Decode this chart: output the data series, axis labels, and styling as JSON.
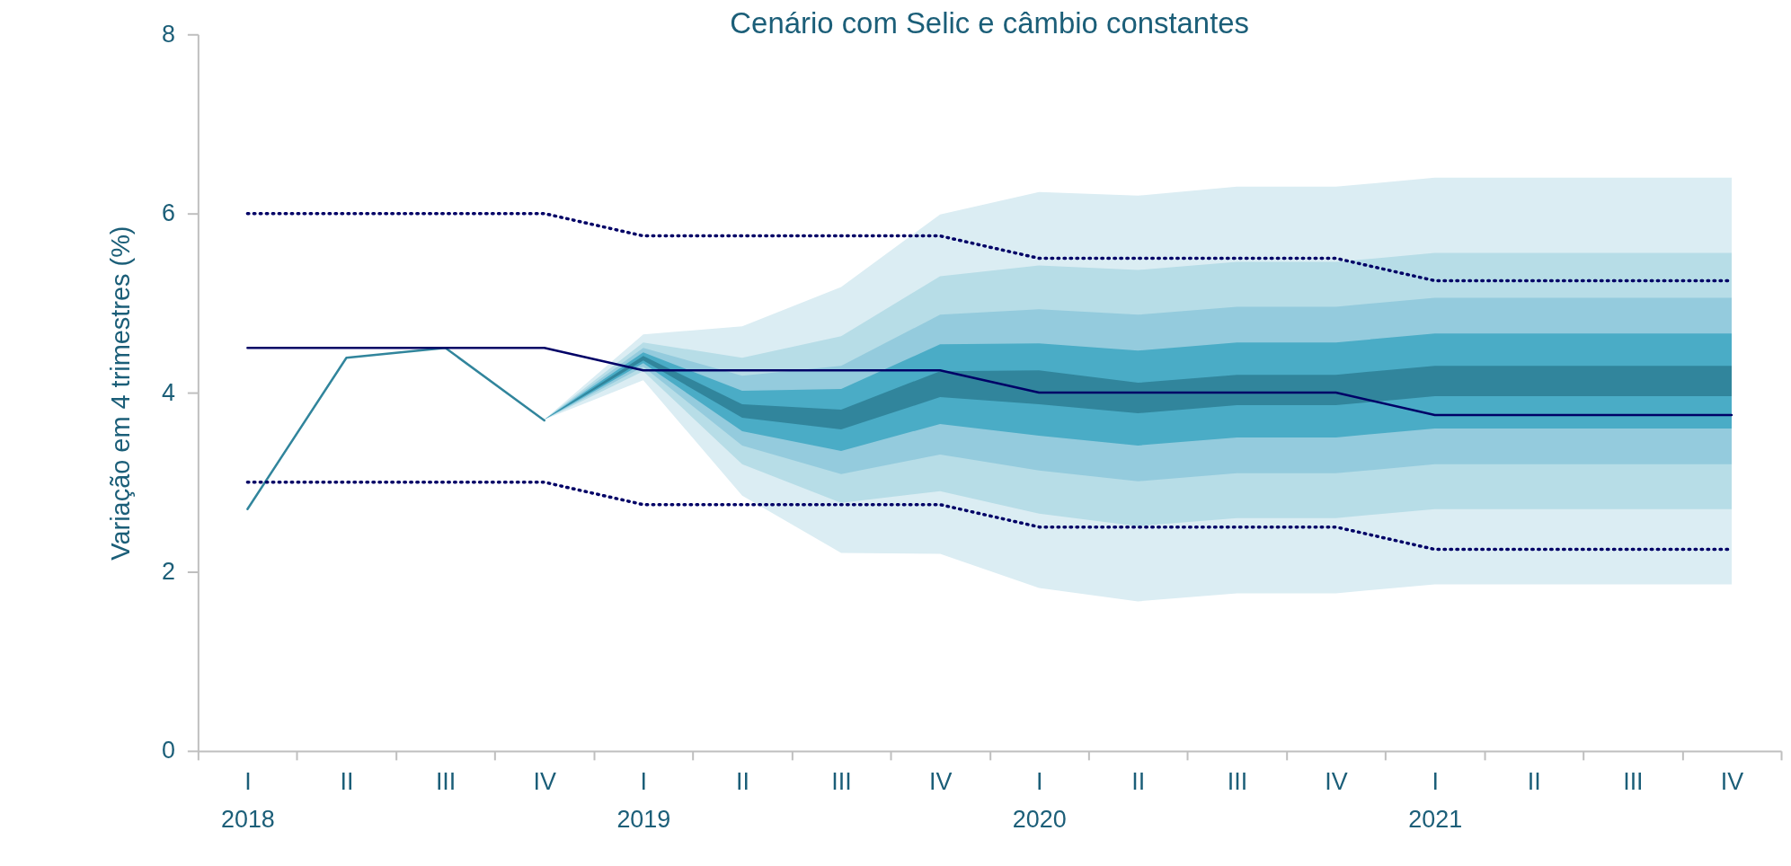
{
  "chart_data": {
    "type": "line",
    "title": "Cenário com Selic e câmbio constantes",
    "ylabel": "Variação em 4 trimestres (%)",
    "categories": [
      "I",
      "II",
      "III",
      "IV",
      "I",
      "II",
      "III",
      "IV",
      "I",
      "II",
      "III",
      "IV",
      "I",
      "II",
      "III",
      "IV"
    ],
    "annotations": [
      "2018",
      "2019",
      "2020",
      "2021"
    ],
    "ylim": [
      0,
      8
    ],
    "yticks": [
      0,
      2,
      4,
      6,
      8
    ],
    "grid": false,
    "series": [
      {
        "type": "area",
        "color": "#dbedf3",
        "values": [
          null,
          null,
          null,
          null,
          null,
          null,
          null,
          null,
          null,
          null,
          null,
          null,
          null,
          null,
          null,
          null
        ],
        "lower": [
          null,
          null,
          null,
          3.7,
          4.14,
          2.85,
          2.21,
          2.2,
          1.82,
          1.67,
          1.76,
          1.76,
          1.86,
          1.86,
          1.86,
          1.86
        ],
        "upper": [
          null,
          null,
          null,
          3.7,
          4.65,
          4.74,
          5.18,
          5.99,
          6.24,
          6.2,
          6.3,
          6.3,
          6.4,
          6.4,
          6.4,
          6.4
        ]
      },
      {
        "type": "area",
        "color": "#b7dde7",
        "values": [
          null,
          null,
          null,
          null,
          null,
          null,
          null,
          null,
          null,
          null,
          null,
          null,
          null,
          null,
          null,
          null
        ],
        "lower": [
          null,
          null,
          null,
          3.7,
          4.24,
          3.2,
          2.77,
          2.9,
          2.65,
          2.51,
          2.6,
          2.6,
          2.7,
          2.7,
          2.7,
          2.7
        ],
        "upper": [
          null,
          null,
          null,
          3.7,
          4.56,
          4.39,
          4.63,
          5.3,
          5.42,
          5.37,
          5.46,
          5.46,
          5.56,
          5.56,
          5.56,
          5.56
        ]
      },
      {
        "type": "area",
        "color": "#94cbdd",
        "values": [
          null,
          null,
          null,
          null,
          null,
          null,
          null,
          null,
          null,
          null,
          null,
          null,
          null,
          null,
          null,
          null
        ],
        "lower": [
          null,
          null,
          null,
          3.7,
          4.29,
          3.41,
          3.09,
          3.31,
          3.13,
          3.01,
          3.1,
          3.1,
          3.2,
          3.2,
          3.2,
          3.2
        ],
        "upper": [
          null,
          null,
          null,
          3.7,
          4.5,
          4.19,
          4.3,
          4.87,
          4.93,
          4.87,
          4.96,
          4.96,
          5.06,
          5.06,
          5.06,
          5.06
        ]
      },
      {
        "type": "area",
        "color": "#4aacc6",
        "values": [
          null,
          null,
          null,
          null,
          null,
          null,
          null,
          null,
          null,
          null,
          null,
          null,
          null,
          null,
          null,
          null
        ],
        "lower": [
          null,
          null,
          null,
          3.7,
          4.33,
          3.57,
          3.35,
          3.65,
          3.52,
          3.41,
          3.5,
          3.5,
          3.6,
          3.6,
          3.6,
          3.6
        ],
        "upper": [
          null,
          null,
          null,
          3.7,
          4.45,
          4.02,
          4.04,
          4.54,
          4.55,
          4.47,
          4.56,
          4.56,
          4.66,
          4.66,
          4.66,
          4.66
        ]
      },
      {
        "type": "area",
        "color": "#31859c",
        "values": [
          null,
          null,
          null,
          null,
          null,
          null,
          null,
          null,
          null,
          null,
          null,
          null,
          null,
          null,
          null,
          null
        ],
        "lower": [
          null,
          null,
          null,
          3.7,
          4.36,
          3.72,
          3.59,
          3.95,
          3.87,
          3.77,
          3.86,
          3.86,
          3.96,
          3.96,
          3.96,
          3.96
        ],
        "upper": [
          null,
          null,
          null,
          3.7,
          4.41,
          3.87,
          3.81,
          4.24,
          4.25,
          4.11,
          4.2,
          4.2,
          4.3,
          4.3,
          4.3,
          4.3
        ]
      },
      {
        "color": "#31859c",
        "line_style": "solid",
        "values": [
          2.7,
          4.39,
          4.5,
          3.69,
          null,
          null,
          null,
          null,
          null,
          null,
          null,
          null,
          null,
          null,
          null,
          null
        ]
      },
      {
        "color": "#000066",
        "line_style": "solid",
        "values": [
          4.5,
          4.5,
          4.5,
          4.5,
          4.25,
          4.25,
          4.25,
          4.25,
          4.0,
          4.0,
          4.0,
          4.0,
          3.75,
          3.75,
          3.75,
          3.75
        ]
      },
      {
        "color": "#000066",
        "line_style": "dotted",
        "values": [
          6.0,
          6.0,
          6.0,
          6.0,
          5.75,
          5.75,
          5.75,
          5.75,
          5.5,
          5.5,
          5.5,
          5.5,
          5.25,
          5.25,
          5.25,
          5.25
        ]
      },
      {
        "color": "#000066",
        "line_style": "dotted",
        "values": [
          3.0,
          3.0,
          3.0,
          3.0,
          2.75,
          2.75,
          2.75,
          2.75,
          2.5,
          2.5,
          2.5,
          2.5,
          2.25,
          2.25,
          2.25,
          2.25
        ]
      }
    ]
  }
}
